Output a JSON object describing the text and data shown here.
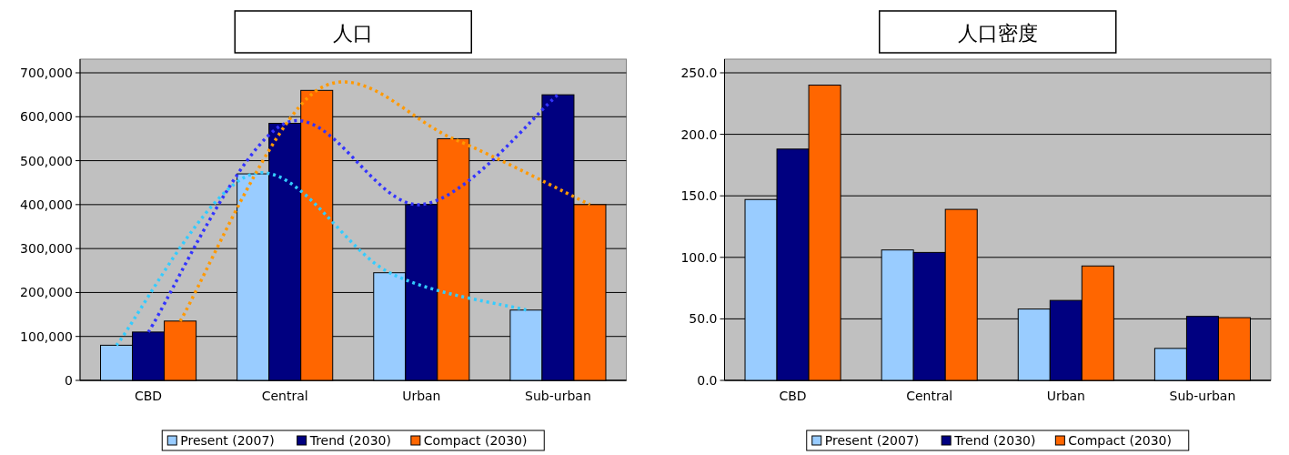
{
  "chart_data": [
    {
      "type": "bar",
      "title": "人口",
      "categories": [
        "CBD",
        "Central",
        "Urban",
        "Sub-urban"
      ],
      "series": [
        {
          "name": "Present (2007)",
          "color": "#99ccff",
          "values": [
            80000,
            470000,
            245000,
            160000
          ]
        },
        {
          "name": "Trend (2030)",
          "color": "#000080",
          "values": [
            110000,
            585000,
            400000,
            650000
          ]
        },
        {
          "name": "Compact (2030)",
          "color": "#ff6600",
          "values": [
            135000,
            660000,
            550000,
            400000
          ]
        },
        {
          "type": "line",
          "line_style": "dotted",
          "color": "#33ccff",
          "values": [
            80000,
            470000,
            245000,
            160000
          ]
        },
        {
          "type": "line",
          "line_style": "dotted",
          "color": "#3333ff",
          "values": [
            110000,
            585000,
            400000,
            650000
          ]
        },
        {
          "type": "line",
          "line_style": "dotted",
          "color": "#ff9900",
          "values": [
            135000,
            660000,
            550000,
            400000
          ]
        }
      ],
      "ylim": [
        0,
        700000
      ],
      "yticks": [
        {
          "value": 0,
          "label": "0"
        },
        {
          "value": 100000,
          "label": "100,000"
        },
        {
          "value": 200000,
          "label": "200,000"
        },
        {
          "value": 300000,
          "label": "300,000"
        },
        {
          "value": 400000,
          "label": "400,000"
        },
        {
          "value": 500000,
          "label": "500,000"
        },
        {
          "value": 600000,
          "label": "600,000"
        },
        {
          "value": 700000,
          "label": "700,000"
        }
      ],
      "grid": "y",
      "legend": "bottom"
    },
    {
      "type": "bar",
      "title": "人口密度",
      "categories": [
        "CBD",
        "Central",
        "Urban",
        "Sub-urban"
      ],
      "series": [
        {
          "name": "Present (2007)",
          "color": "#99ccff",
          "values": [
            147,
            106,
            58,
            26
          ]
        },
        {
          "name": "Trend (2030)",
          "color": "#000080",
          "values": [
            188,
            104,
            65,
            52
          ]
        },
        {
          "name": "Compact (2030)",
          "color": "#ff6600",
          "values": [
            240,
            139,
            93,
            51
          ]
        }
      ],
      "ylim": [
        0,
        250
      ],
      "yticks": [
        {
          "value": 0,
          "label": "0.0"
        },
        {
          "value": 50,
          "label": "50.0"
        },
        {
          "value": 100,
          "label": "100.0"
        },
        {
          "value": 150,
          "label": "150.0"
        },
        {
          "value": 200,
          "label": "200.0"
        },
        {
          "value": 250,
          "label": "250.0"
        }
      ],
      "grid": "y",
      "legend": "bottom"
    }
  ]
}
